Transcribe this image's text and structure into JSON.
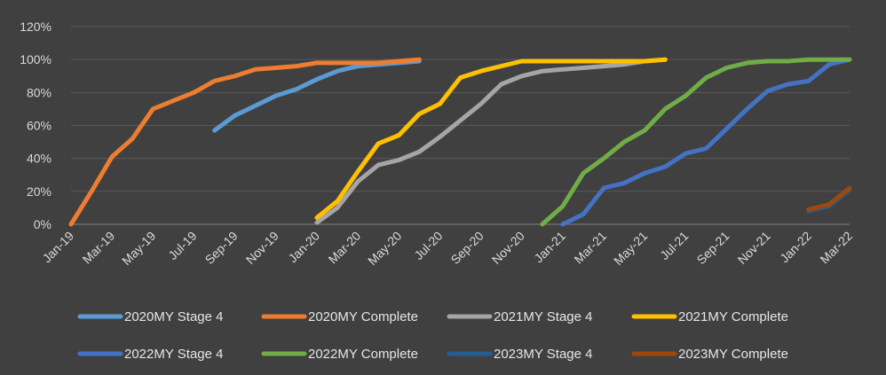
{
  "chart_data": {
    "type": "line",
    "title": "",
    "xlabel": "",
    "ylabel": "",
    "x_ticks": [
      "Jan-19",
      "Mar-19",
      "May-19",
      "Jul-19",
      "Sep-19",
      "Nov-19",
      "Jan-20",
      "Mar-20",
      "May-20",
      "Jul-20",
      "Sep-20",
      "Nov-20",
      "Jan-21",
      "Mar-21",
      "May-21",
      "Jul-21",
      "Sep-21",
      "Nov-21",
      "Jan-22",
      "Mar-22"
    ],
    "y_ticks": [
      "0%",
      "20%",
      "40%",
      "60%",
      "80%",
      "100%",
      "120%"
    ],
    "ylim": [
      0,
      120
    ],
    "xlim": [
      "2019-01",
      "2022-03"
    ],
    "grid": "horizontal",
    "legend_position": "bottom",
    "series": [
      {
        "name": "2020MY Stage 4",
        "color": "#5b9bd5",
        "points": [
          [
            "2019-08",
            57
          ],
          [
            "2019-09",
            66
          ],
          [
            "2019-10",
            72
          ],
          [
            "2019-11",
            78
          ],
          [
            "2019-12",
            82
          ],
          [
            "2020-01",
            88
          ],
          [
            "2020-02",
            93
          ],
          [
            "2020-03",
            96
          ],
          [
            "2020-04",
            97
          ],
          [
            "2020-05",
            98
          ],
          [
            "2020-06",
            99
          ]
        ]
      },
      {
        "name": "2020MY Complete",
        "color": "#ed7d31",
        "points": [
          [
            "2019-01",
            0
          ],
          [
            "2019-02",
            20
          ],
          [
            "2019-03",
            41
          ],
          [
            "2019-04",
            52
          ],
          [
            "2019-05",
            70
          ],
          [
            "2019-06",
            75
          ],
          [
            "2019-07",
            80
          ],
          [
            "2019-08",
            87
          ],
          [
            "2019-09",
            90
          ],
          [
            "2019-10",
            94
          ],
          [
            "2019-11",
            95
          ],
          [
            "2019-12",
            96
          ],
          [
            "2020-01",
            98
          ],
          [
            "2020-02",
            98
          ],
          [
            "2020-03",
            98
          ],
          [
            "2020-04",
            98
          ],
          [
            "2020-05",
            99
          ],
          [
            "2020-06",
            100
          ]
        ]
      },
      {
        "name": "2021MY Stage 4",
        "color": "#a5a5a5",
        "points": [
          [
            "2020-01",
            1
          ],
          [
            "2020-02",
            10
          ],
          [
            "2020-03",
            26
          ],
          [
            "2020-04",
            36
          ],
          [
            "2020-05",
            39
          ],
          [
            "2020-06",
            44
          ],
          [
            "2020-07",
            53
          ],
          [
            "2020-08",
            63
          ],
          [
            "2020-09",
            73
          ],
          [
            "2020-10",
            85
          ],
          [
            "2020-11",
            90
          ],
          [
            "2020-12",
            93
          ],
          [
            "2021-01",
            94
          ],
          [
            "2021-02",
            95
          ],
          [
            "2021-03",
            96
          ],
          [
            "2021-04",
            97
          ],
          [
            "2021-05",
            99
          ],
          [
            "2021-06",
            100
          ]
        ]
      },
      {
        "name": "2021MY Complete",
        "color": "#ffc000",
        "points": [
          [
            "2020-01",
            4
          ],
          [
            "2020-02",
            14
          ],
          [
            "2020-03",
            32
          ],
          [
            "2020-04",
            49
          ],
          [
            "2020-05",
            54
          ],
          [
            "2020-06",
            67
          ],
          [
            "2020-07",
            73
          ],
          [
            "2020-08",
            89
          ],
          [
            "2020-09",
            93
          ],
          [
            "2020-10",
            96
          ],
          [
            "2020-11",
            99
          ],
          [
            "2020-12",
            99
          ],
          [
            "2021-01",
            99
          ],
          [
            "2021-02",
            99
          ],
          [
            "2021-03",
            99
          ],
          [
            "2021-04",
            99
          ],
          [
            "2021-05",
            99
          ],
          [
            "2021-06",
            100
          ]
        ]
      },
      {
        "name": "2022MY Stage 4",
        "color": "#4472c4",
        "points": [
          [
            "2021-01",
            0
          ],
          [
            "2021-02",
            6
          ],
          [
            "2021-03",
            22
          ],
          [
            "2021-04",
            25
          ],
          [
            "2021-05",
            31
          ],
          [
            "2021-06",
            35
          ],
          [
            "2021-07",
            43
          ],
          [
            "2021-08",
            46
          ],
          [
            "2021-09",
            58
          ],
          [
            "2021-10",
            70
          ],
          [
            "2021-11",
            81
          ],
          [
            "2021-12",
            85
          ],
          [
            "2022-01",
            87
          ],
          [
            "2022-02",
            97
          ],
          [
            "2022-03",
            100
          ]
        ]
      },
      {
        "name": "2022MY Complete",
        "color": "#70ad47",
        "points": [
          [
            "2020-12",
            0
          ],
          [
            "2021-01",
            11
          ],
          [
            "2021-02",
            31
          ],
          [
            "2021-03",
            40
          ],
          [
            "2021-04",
            50
          ],
          [
            "2021-05",
            57
          ],
          [
            "2021-06",
            70
          ],
          [
            "2021-07",
            78
          ],
          [
            "2021-08",
            89
          ],
          [
            "2021-09",
            95
          ],
          [
            "2021-10",
            98
          ],
          [
            "2021-11",
            99
          ],
          [
            "2021-12",
            99
          ],
          [
            "2022-01",
            100
          ],
          [
            "2022-02",
            100
          ],
          [
            "2022-03",
            100
          ]
        ]
      },
      {
        "name": "2023MY Stage 4",
        "color": "#255e91",
        "points": [
          [
            "2022-01",
            8
          ],
          [
            "2022-02",
            11
          ],
          [
            "2022-03",
            21
          ]
        ]
      },
      {
        "name": "2023MY Complete",
        "color": "#9e480e",
        "points": [
          [
            "2022-01",
            9
          ],
          [
            "2022-02",
            12
          ],
          [
            "2022-03",
            22
          ]
        ]
      }
    ]
  }
}
